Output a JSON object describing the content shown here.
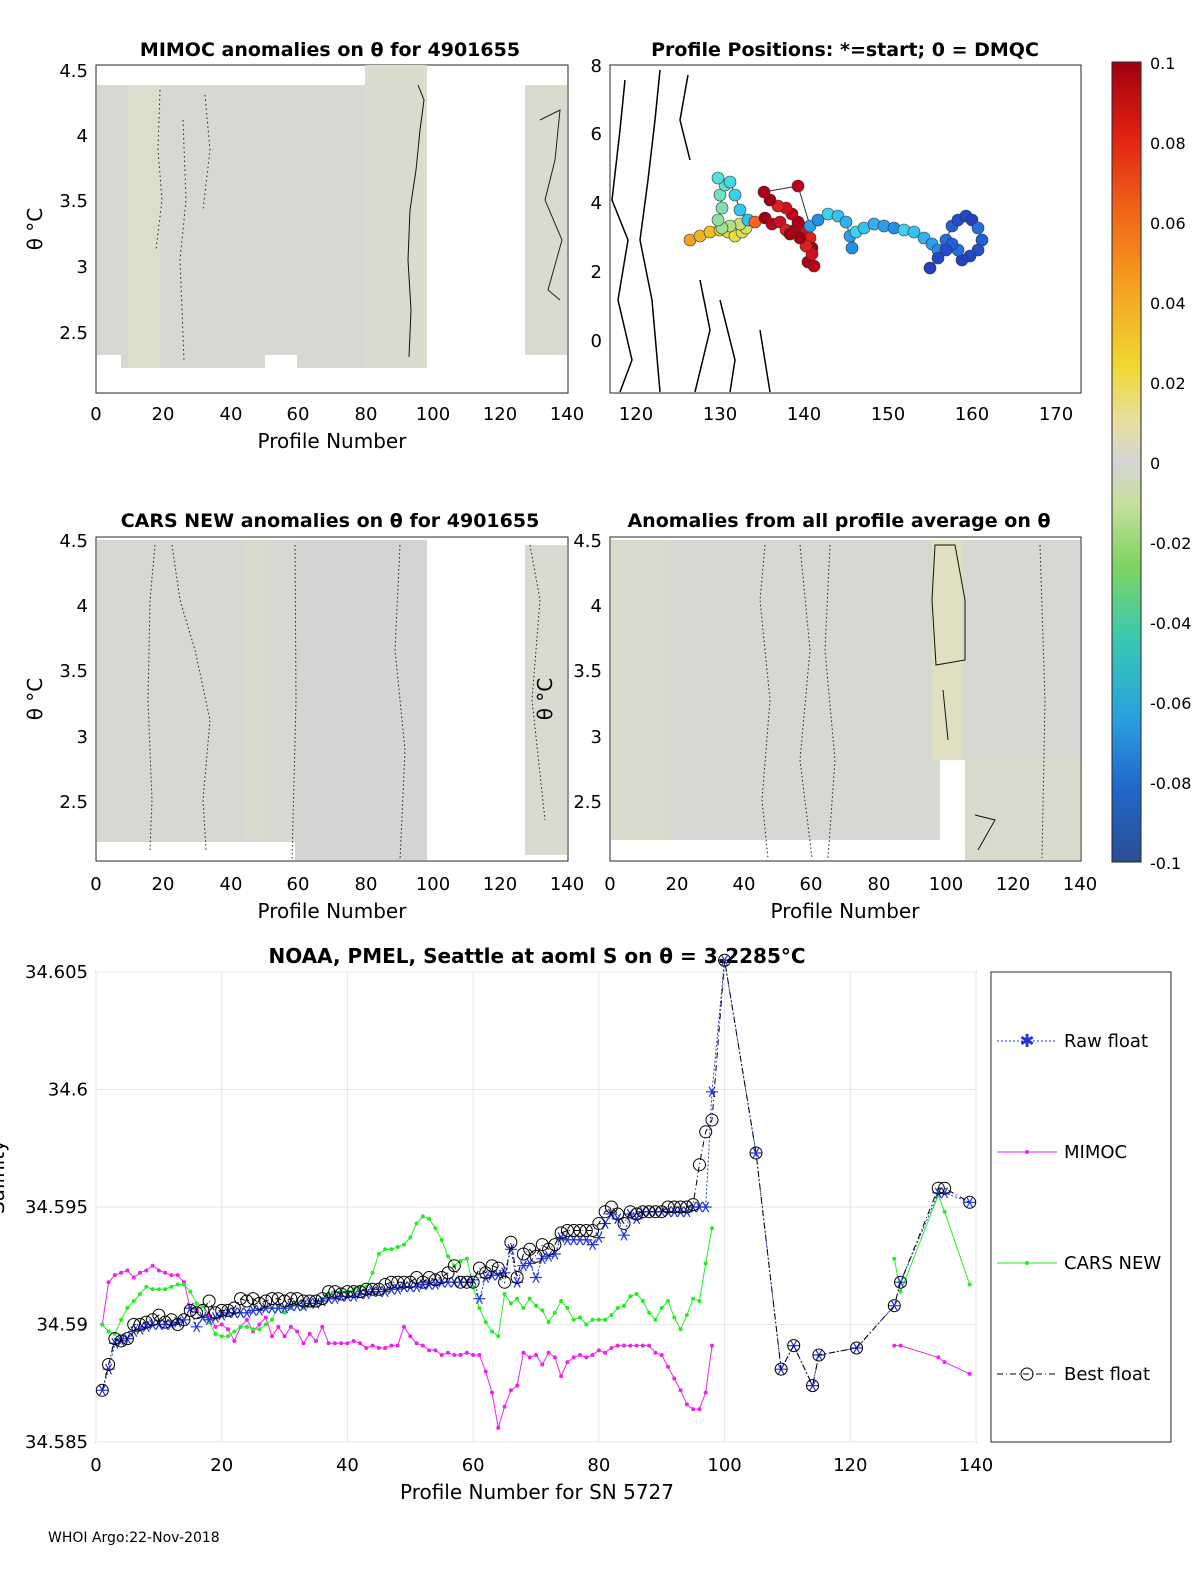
{
  "panel_mimoc": {
    "title": "MIMOC anomalies on θ  for 4901655",
    "xlabel": "Profile Number",
    "ylabel": "θ °C",
    "xticks": [
      "0",
      "20",
      "40",
      "60",
      "80",
      "100",
      "120",
      "140"
    ],
    "yticks": [
      "2.5",
      "3",
      "3.5",
      "4",
      "4.5"
    ]
  },
  "panel_positions": {
    "title": "Profile Positions: *=start; 0 = DMQC",
    "xticks": [
      "120",
      "130",
      "140",
      "150",
      "160",
      "170"
    ],
    "yticks": [
      "0",
      "2",
      "4",
      "6",
      "8"
    ]
  },
  "panel_cars": {
    "title": "CARS NEW anomalies on θ for 4901655",
    "xlabel": "Profile Number",
    "ylabel": "θ °C",
    "xticks": [
      "0",
      "20",
      "40",
      "60",
      "80",
      "100",
      "120",
      "140"
    ],
    "yticks": [
      "2.5",
      "3",
      "3.5",
      "4",
      "4.5"
    ]
  },
  "panel_allavg": {
    "title": "Anomalies from all profile average on θ",
    "xlabel": "Profile Number",
    "ylabel": "θ °C",
    "xticks": [
      "0",
      "20",
      "40",
      "60",
      "80",
      "100",
      "120",
      "140"
    ],
    "yticks": [
      "2.5",
      "3",
      "3.5",
      "4",
      "4.5"
    ]
  },
  "colorbar": {
    "ticks": [
      "0.1",
      "0.08",
      "0.06",
      "0.04",
      "0.02",
      "0",
      "-0.02",
      "-0.04",
      "-0.06",
      "-0.08",
      "-0.1"
    ]
  },
  "colors": {
    "raw": "#2233dd",
    "mimoc": "#ee22ee",
    "cars": "#22ee22",
    "best": "#000000"
  },
  "footer": "WHOI Argo:22-Nov-2018",
  "chart_data": {
    "type": "line",
    "title": "NOAA, PMEL, Seattle at aoml S on θ = 3.2285°C",
    "xlabel": "Profile Number for SN 5727",
    "ylabel": "Salinity",
    "xlim": [
      0,
      140
    ],
    "ylim": [
      34.585,
      34.605
    ],
    "xticks": [
      "0",
      "20",
      "40",
      "60",
      "80",
      "100",
      "120",
      "140"
    ],
    "yticks": [
      "34.585",
      "34.59",
      "34.595",
      "34.6",
      "34.605"
    ],
    "legend": [
      "Raw float",
      "MIMOC",
      "CARS NEW",
      "Best float"
    ],
    "series": [
      {
        "name": "Raw float",
        "x": [
          1,
          2,
          3,
          4,
          5,
          6,
          7,
          8,
          9,
          10,
          11,
          12,
          13,
          14,
          15,
          16,
          17,
          18,
          19,
          20,
          21,
          22,
          23,
          24,
          25,
          26,
          27,
          28,
          29,
          30,
          31,
          32,
          33,
          34,
          35,
          36,
          37,
          38,
          39,
          40,
          41,
          42,
          43,
          44,
          45,
          46,
          47,
          48,
          49,
          50,
          51,
          52,
          53,
          54,
          55,
          56,
          57,
          58,
          59,
          60,
          61,
          62,
          63,
          64,
          65,
          66,
          67,
          68,
          69,
          70,
          71,
          72,
          73,
          74,
          75,
          76,
          77,
          78,
          79,
          80,
          81,
          82,
          83,
          84,
          85,
          86,
          87,
          88,
          89,
          90,
          91,
          92,
          93,
          94,
          95,
          96,
          97,
          98,
          100,
          105,
          109,
          111,
          114,
          115,
          121,
          127,
          128,
          134,
          135,
          139
        ],
        "values": [
          34.5872,
          34.5881,
          34.5892,
          34.5893,
          34.5894,
          34.5897,
          34.5898,
          34.5899,
          34.59,
          34.59,
          34.59,
          34.59,
          34.5901,
          34.5902,
          34.5907,
          34.5899,
          34.5903,
          34.5902,
          34.5903,
          34.5904,
          34.5905,
          34.5905,
          34.5905,
          34.5905,
          34.5906,
          34.5906,
          34.5907,
          34.5907,
          34.5907,
          34.5907,
          34.5908,
          34.5908,
          34.5908,
          34.5909,
          34.5909,
          34.591,
          34.5911,
          34.5911,
          34.5912,
          34.5912,
          34.5912,
          34.5913,
          34.5913,
          34.5914,
          34.5914,
          34.5914,
          34.5915,
          34.5915,
          34.5916,
          34.5916,
          34.5916,
          34.5917,
          34.5917,
          34.5917,
          34.5918,
          34.5918,
          34.5918,
          34.5918,
          34.5918,
          34.5919,
          34.5911,
          34.592,
          34.5921,
          34.5921,
          34.5922,
          34.5932,
          34.5918,
          34.5925,
          34.5926,
          34.592,
          34.5928,
          34.5929,
          34.593,
          34.5937,
          34.5936,
          34.5936,
          34.5936,
          34.5936,
          34.5934,
          34.5937,
          34.5943,
          34.5947,
          34.5945,
          34.5938,
          34.5947,
          34.5945,
          34.5948,
          34.5948,
          34.5948,
          34.5948,
          34.5948,
          34.5948,
          34.5948,
          34.5948,
          34.595,
          34.595,
          34.595,
          34.5999,
          34.6055,
          34.5973,
          34.5881,
          34.5891,
          34.5874,
          34.5887,
          34.589,
          34.5908,
          34.5918,
          34.5956,
          34.5956,
          34.5952
        ]
      },
      {
        "name": "MIMOC",
        "x": [
          1,
          2,
          3,
          4,
          5,
          6,
          7,
          8,
          9,
          10,
          11,
          12,
          13,
          14,
          15,
          16,
          17,
          18,
          19,
          20,
          21,
          22,
          23,
          24,
          25,
          26,
          27,
          28,
          29,
          30,
          31,
          32,
          33,
          34,
          35,
          36,
          37,
          38,
          39,
          40,
          41,
          42,
          43,
          44,
          45,
          46,
          47,
          48,
          49,
          50,
          51,
          52,
          53,
          54,
          55,
          56,
          57,
          58,
          59,
          60,
          61,
          62,
          63,
          64,
          65,
          66,
          67,
          68,
          69,
          70,
          71,
          72,
          73,
          74,
          75,
          76,
          77,
          78,
          79,
          80,
          81,
          82,
          83,
          84,
          85,
          86,
          87,
          88,
          89,
          90,
          91,
          92,
          93,
          94,
          95,
          96,
          97,
          98,
          127,
          128,
          134,
          135,
          139
        ],
        "values": [
          34.59,
          34.5918,
          34.5921,
          34.5922,
          34.5923,
          34.592,
          34.5922,
          34.5923,
          34.5925,
          34.5923,
          34.5922,
          34.5921,
          34.5921,
          34.5918,
          34.5907,
          34.5906,
          34.5908,
          34.5904,
          34.5899,
          34.59,
          34.5898,
          34.5893,
          34.5899,
          34.5902,
          34.5897,
          34.59,
          34.5903,
          34.5895,
          34.5899,
          34.5895,
          34.5899,
          34.5897,
          34.5892,
          34.5896,
          34.5893,
          34.5899,
          34.5892,
          34.5892,
          34.5892,
          34.5892,
          34.5893,
          34.5892,
          34.589,
          34.5891,
          34.589,
          34.589,
          34.5891,
          34.5891,
          34.5899,
          34.5895,
          34.5892,
          34.5891,
          34.5889,
          34.5889,
          34.5887,
          34.5888,
          34.5887,
          34.5887,
          34.5888,
          34.5887,
          34.5887,
          34.588,
          34.5871,
          34.5856,
          34.5865,
          34.5872,
          34.5874,
          34.5888,
          34.5886,
          34.5887,
          34.5883,
          34.5888,
          34.5886,
          34.5878,
          34.5884,
          34.5886,
          34.5887,
          34.5886,
          34.5887,
          34.5889,
          34.5888,
          34.589,
          34.5891,
          34.5891,
          34.5891,
          34.5891,
          34.5891,
          34.5891,
          34.5888,
          34.5887,
          34.5882,
          34.5877,
          34.5872,
          34.5866,
          34.5864,
          34.5864,
          34.5871,
          34.5891,
          34.5891,
          34.5891,
          34.5886,
          34.5884,
          34.5879
        ]
      },
      {
        "name": "CARS NEW",
        "x": [
          1,
          2,
          3,
          4,
          5,
          6,
          7,
          8,
          9,
          10,
          11,
          12,
          13,
          14,
          15,
          16,
          17,
          18,
          19,
          20,
          21,
          22,
          23,
          24,
          25,
          26,
          27,
          28,
          29,
          30,
          31,
          32,
          33,
          34,
          35,
          36,
          37,
          38,
          39,
          40,
          41,
          42,
          43,
          44,
          45,
          46,
          47,
          48,
          49,
          50,
          51,
          52,
          53,
          54,
          55,
          56,
          57,
          58,
          59,
          60,
          61,
          62,
          63,
          64,
          65,
          66,
          67,
          68,
          69,
          70,
          71,
          72,
          73,
          74,
          75,
          76,
          77,
          78,
          79,
          80,
          81,
          82,
          83,
          84,
          85,
          86,
          87,
          88,
          89,
          90,
          91,
          92,
          93,
          94,
          95,
          96,
          97,
          98,
          127,
          128,
          134,
          135,
          139
        ],
        "values": [
          34.59,
          34.5897,
          34.5896,
          34.5902,
          34.5907,
          34.591,
          34.5913,
          34.5916,
          34.5915,
          34.5915,
          34.5915,
          34.5916,
          34.5917,
          34.5917,
          34.5914,
          34.5909,
          34.5908,
          34.5901,
          34.5896,
          34.5895,
          34.5895,
          34.5897,
          34.5899,
          34.5899,
          34.5898,
          34.5898,
          34.59,
          34.5902,
          34.5908,
          34.5905,
          34.5907,
          34.5909,
          34.5907,
          34.5909,
          34.5909,
          34.5911,
          34.5913,
          34.5914,
          34.5914,
          34.5914,
          34.5915,
          34.5916,
          34.5916,
          34.5922,
          34.593,
          34.5932,
          34.5932,
          34.5933,
          34.5934,
          34.5937,
          34.5943,
          34.5946,
          34.5945,
          34.5941,
          34.5936,
          34.5929,
          34.5925,
          34.5927,
          34.5928,
          34.5916,
          34.5907,
          34.5901,
          34.5897,
          34.5895,
          34.5913,
          34.5909,
          34.5911,
          34.5907,
          34.5911,
          34.5908,
          34.5906,
          34.5901,
          34.5905,
          34.591,
          34.5907,
          34.5902,
          34.5903,
          34.59,
          34.5902,
          34.5902,
          34.5902,
          34.5904,
          34.5907,
          34.5908,
          34.5912,
          34.5913,
          34.591,
          34.5905,
          34.5902,
          34.5907,
          34.591,
          34.5903,
          34.5898,
          34.5904,
          34.5911,
          34.591,
          34.5926,
          34.5941,
          34.5928,
          34.5914,
          34.5955,
          34.5948,
          34.5917
        ]
      },
      {
        "name": "Best float",
        "x": [
          1,
          2,
          3,
          4,
          5,
          6,
          7,
          8,
          9,
          10,
          11,
          12,
          13,
          14,
          15,
          16,
          17,
          18,
          19,
          20,
          21,
          22,
          23,
          24,
          25,
          26,
          27,
          28,
          29,
          30,
          31,
          32,
          33,
          34,
          35,
          36,
          37,
          38,
          39,
          40,
          41,
          42,
          43,
          44,
          45,
          46,
          47,
          48,
          49,
          50,
          51,
          52,
          53,
          54,
          55,
          56,
          57,
          58,
          59,
          60,
          61,
          62,
          63,
          64,
          65,
          66,
          67,
          68,
          69,
          70,
          71,
          72,
          73,
          74,
          75,
          76,
          77,
          78,
          79,
          80,
          81,
          82,
          83,
          84,
          85,
          86,
          87,
          88,
          89,
          90,
          91,
          92,
          93,
          94,
          95,
          96,
          97,
          98,
          100,
          105,
          109,
          111,
          114,
          115,
          121,
          127,
          128,
          134,
          135,
          139
        ],
        "values": [
          34.5872,
          34.5883,
          34.5894,
          34.5893,
          34.5894,
          34.59,
          34.59,
          34.5901,
          34.5902,
          34.5904,
          34.5901,
          34.5902,
          34.59,
          34.5902,
          34.5906,
          34.5905,
          34.5906,
          34.591,
          34.5905,
          34.5906,
          34.5906,
          34.5907,
          34.5911,
          34.591,
          34.5911,
          34.5909,
          34.591,
          34.5911,
          34.5911,
          34.591,
          34.5911,
          34.5911,
          34.591,
          34.591,
          34.591,
          34.5911,
          34.5914,
          34.5914,
          34.5913,
          34.5914,
          34.5914,
          34.5914,
          34.5915,
          34.5915,
          34.5915,
          34.5917,
          34.5918,
          34.5918,
          34.5918,
          34.5918,
          34.592,
          34.5918,
          34.592,
          34.5919,
          34.592,
          34.5922,
          34.5925,
          34.5918,
          34.5918,
          34.5918,
          34.5924,
          34.5922,
          34.5925,
          34.5924,
          34.5918,
          34.5935,
          34.592,
          34.593,
          34.5932,
          34.5929,
          34.5934,
          34.5932,
          34.5934,
          34.5939,
          34.594,
          34.594,
          34.594,
          34.594,
          34.594,
          34.5943,
          34.5948,
          34.595,
          34.5947,
          34.5943,
          34.5948,
          34.5947,
          34.5948,
          34.5948,
          34.5948,
          34.5948,
          34.595,
          34.595,
          34.595,
          34.595,
          34.5951,
          34.5968,
          34.5982,
          34.5987,
          34.6055,
          34.5973,
          34.5881,
          34.5891,
          34.5874,
          34.5887,
          34.589,
          34.5908,
          34.5918,
          34.5958,
          34.5958,
          34.5952
        ]
      }
    ]
  }
}
